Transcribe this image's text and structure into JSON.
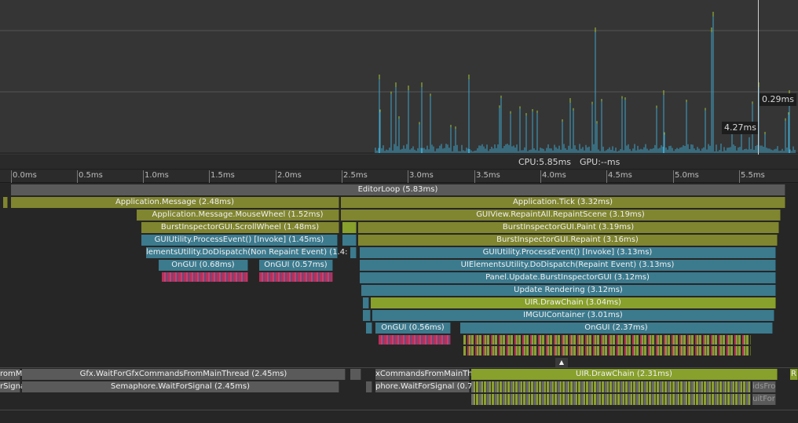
{
  "chart": {
    "tooltip_hover": "0.29ms",
    "tooltip_value": "4.27ms"
  },
  "stats": {
    "cpu": "CPU:5.85ms",
    "gpu": "GPU:--ms"
  },
  "ruler": [
    "0.0ms",
    "0.5ms",
    "1.0ms",
    "1.5ms",
    "2.0ms",
    "2.5ms",
    "3.0ms",
    "3.5ms",
    "4.0ms",
    "4.5ms",
    "5.0ms",
    "5.5ms"
  ],
  "markers": {
    "editor_loop": "EditorLoop (5.83ms)",
    "app_message": "Application.Message (2.48ms)",
    "app_tick": "Application.Tick (3.32ms)",
    "mouse_wheel": "Application.Message.MouseWheel (1.52ms)",
    "repaint_all": "GUIView.RepaintAll.RepaintScene (3.19ms)",
    "scroll_wheel": "BurstInspectorGUI.ScrollWheel (1.48ms)",
    "burst_paint": "BurstInspectorGUI.Paint (3.19ms)",
    "process_event_a": "GUIUtility.ProcessEvent() [Invoke] (1.45ms)",
    "burst_repaint": "BurstInspectorGUI.Repaint (3.16ms)",
    "dispatch_non_repaint": "lementsUtility.DoDispatch(Non Repaint Event) (1.4:",
    "process_event_b": "GUIUtility.ProcessEvent() [Invoke] (3.13ms)",
    "ongui_a": "OnGUI (0.68ms)",
    "ongui_b": "OnGUI (0.57ms)",
    "dispatch_repaint": "UIElementsUtility.DoDispatch(Repaint Event) (3.13ms)",
    "panel_update": "Panel.Update.BurstInspectorGUI (3.12ms)",
    "update_rendering": "Update Rendering (3.12ms)",
    "draw_chain": "UIR.DrawChain (3.04ms)",
    "imgui_container": "IMGUIContainer (3.01ms)",
    "ongui_c": "OnGUI (0.56ms)",
    "ongui_d": "OnGUI (2.37ms)"
  },
  "render_thread": {
    "left_fragment_1": "romM",
    "left_fragment_2": "rSigna",
    "wait_gfx": "Gfx.WaitForGfxCommandsFromMainThread (2.45ms)",
    "wait_signal": "Semaphore.WaitForSignal (2.45ms)",
    "commands_fragment": "xCommandsFromMainTh",
    "signal_fragment": "phore.WaitForSignal (0.7",
    "draw_chain_rt": "UIR.DrawChain (2.31ms)",
    "right_fragment_1": "idsFro",
    "right_fragment_2": "uitFor",
    "right_fragment_3": "R"
  },
  "colors": {
    "bar_gray": "#5a5a5a",
    "bar_olive": "#808530",
    "bar_teal": "#3c7a8e",
    "bar_lime": "#88a02c",
    "bar_pink": "#b8305a",
    "spike_blue": "#3fa3c8",
    "spike_green": "#a8c838"
  },
  "icons": {
    "expand": "caret-up-icon"
  }
}
